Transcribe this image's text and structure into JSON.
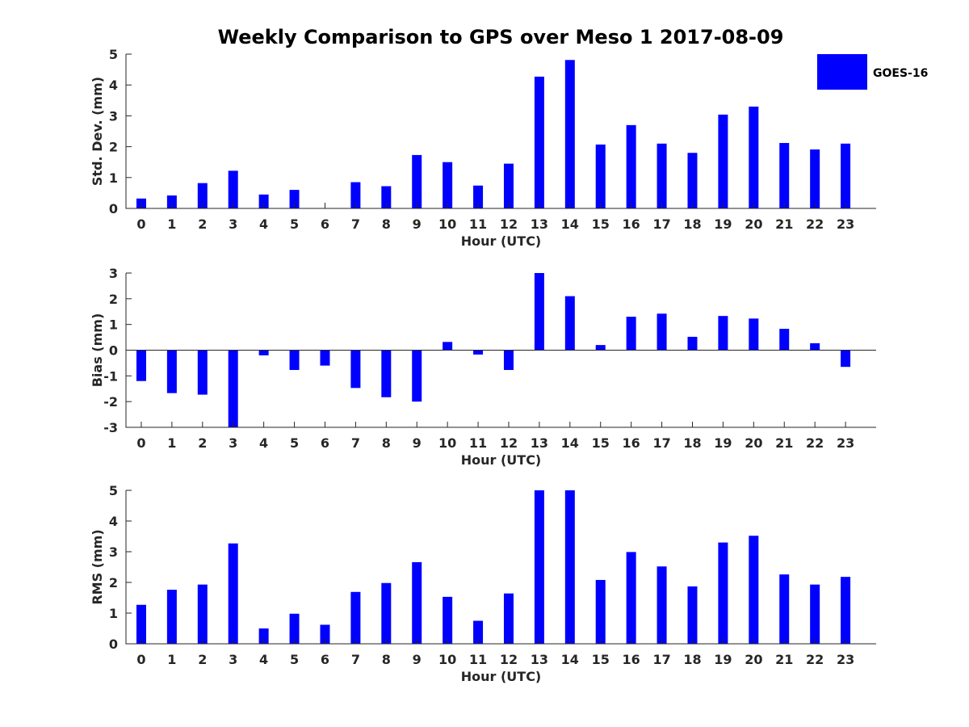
{
  "title": "Weekly Comparison to GPS over Meso 1 2017-08-09",
  "legend": {
    "label": "GOES-16",
    "color": "#0000ff",
    "placement": "top-right"
  },
  "chart_data": [
    {
      "type": "bar",
      "series_name": "GOES-16",
      "color": "#0000ff",
      "categories": [
        "0",
        "1",
        "2",
        "3",
        "4",
        "5",
        "6",
        "7",
        "8",
        "9",
        "10",
        "11",
        "12",
        "13",
        "14",
        "15",
        "16",
        "17",
        "18",
        "19",
        "20",
        "21",
        "22",
        "23"
      ],
      "values": [
        0.32,
        0.42,
        0.82,
        1.22,
        0.45,
        0.6,
        0.0,
        0.85,
        0.72,
        1.73,
        1.5,
        0.74,
        1.45,
        4.27,
        4.81,
        2.07,
        2.7,
        2.1,
        1.8,
        3.04,
        3.3,
        2.12,
        1.91,
        2.1
      ],
      "xlabel": "Hour (UTC)",
      "ylabel": "Std. Dev. (mm)",
      "ylim": [
        0,
        5
      ],
      "yticks": [
        "0",
        "1",
        "2",
        "3",
        "4",
        "5"
      ]
    },
    {
      "type": "bar",
      "series_name": "GOES-16",
      "color": "#0000ff",
      "categories": [
        "0",
        "1",
        "2",
        "3",
        "4",
        "5",
        "6",
        "7",
        "8",
        "9",
        "10",
        "11",
        "12",
        "13",
        "14",
        "15",
        "16",
        "17",
        "18",
        "19",
        "20",
        "21",
        "22",
        "23"
      ],
      "values": [
        -1.2,
        -1.67,
        -1.73,
        -3.0,
        -0.2,
        -0.77,
        -0.6,
        -1.47,
        -1.83,
        -2.0,
        0.32,
        -0.17,
        -0.77,
        3.0,
        2.1,
        0.2,
        1.3,
        1.42,
        0.52,
        1.33,
        1.23,
        0.83,
        0.27,
        -0.65
      ],
      "xlabel": "Hour (UTC)",
      "ylabel": "Bias (mm)",
      "ylim": [
        -3,
        3
      ],
      "yticks": [
        "-3",
        "-2",
        "-1",
        "0",
        "1",
        "2",
        "3"
      ]
    },
    {
      "type": "bar",
      "series_name": "GOES-16",
      "color": "#0000ff",
      "categories": [
        "0",
        "1",
        "2",
        "3",
        "4",
        "5",
        "6",
        "7",
        "8",
        "9",
        "10",
        "11",
        "12",
        "13",
        "14",
        "15",
        "16",
        "17",
        "18",
        "19",
        "20",
        "21",
        "22",
        "23"
      ],
      "values": [
        1.27,
        1.76,
        1.93,
        3.27,
        0.5,
        0.98,
        0.62,
        1.69,
        1.98,
        2.66,
        1.53,
        0.75,
        1.64,
        5.0,
        5.0,
        2.08,
        2.99,
        2.52,
        1.87,
        3.3,
        3.52,
        2.26,
        1.93,
        2.18
      ],
      "xlabel": "Hour (UTC)",
      "ylabel": "RMS (mm)",
      "ylim": [
        0,
        5
      ],
      "yticks": [
        "0",
        "1",
        "2",
        "3",
        "4",
        "5"
      ]
    }
  ]
}
